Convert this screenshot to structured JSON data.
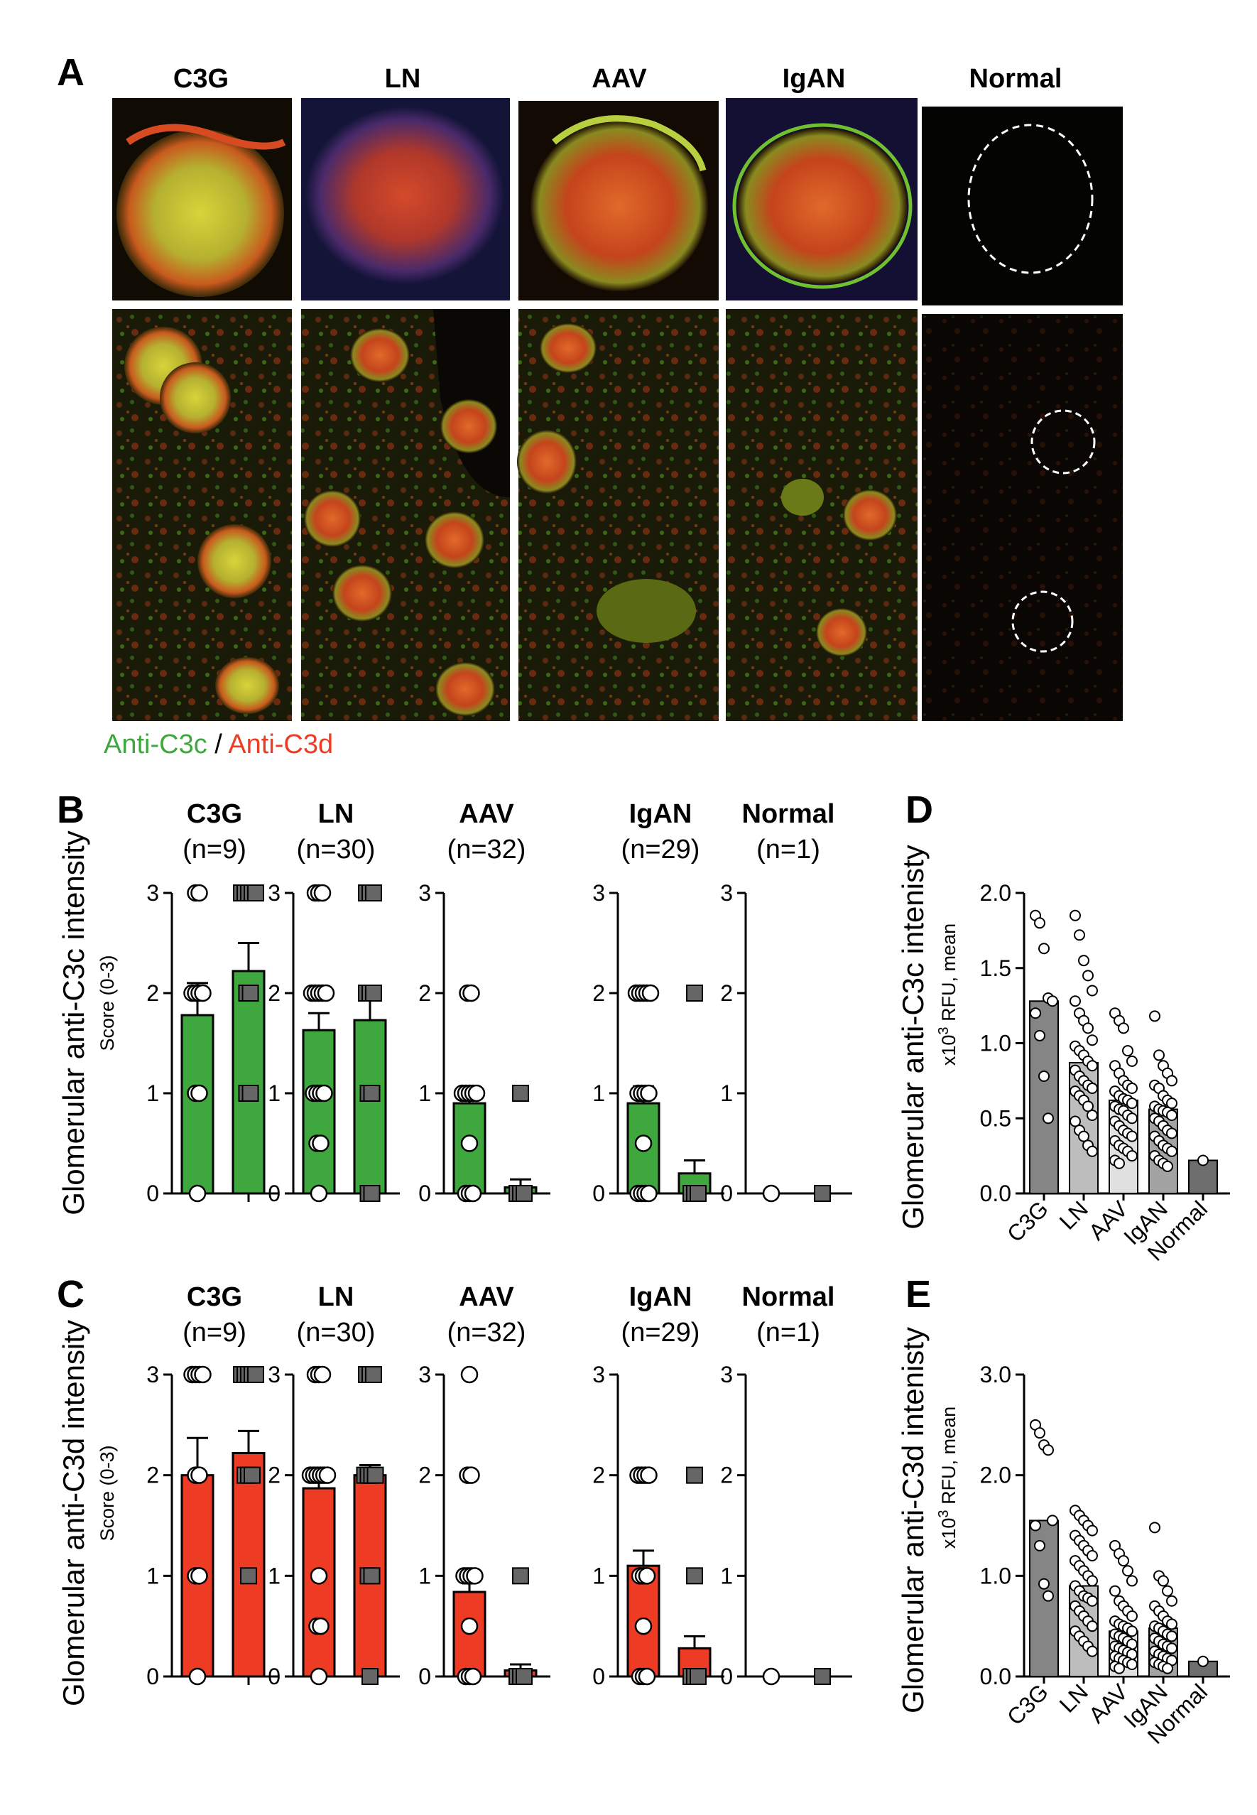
{
  "panel_letters": {
    "a": "A",
    "b": "B",
    "c": "C",
    "d": "D",
    "e": "E"
  },
  "panel_a": {
    "groups": [
      "C3G",
      "LN",
      "AAV",
      "IgAN",
      "Normal"
    ],
    "legend": {
      "green_text": "Anti-C3c",
      "separator": " / ",
      "red_text": "Anti-C3d"
    }
  },
  "colors": {
    "green_bar": "#3ea83e",
    "red_bar": "#ee3b24",
    "dark_bar": "#6e6e6e",
    "grey_square": "#666666"
  },
  "chart_data": [
    {
      "id": "B",
      "type": "bar",
      "ylabel": "Glomerular anti-C3c intensity",
      "ysublabel": "Score (0-3)",
      "ylim": [
        0,
        3
      ],
      "yticks": [
        0,
        1,
        2,
        3
      ],
      "bar_color": "green",
      "groups": [
        {
          "name": "C3G",
          "n_label": "(n=9)",
          "series": [
            {
              "marker": "circle",
              "mean": 1.78,
              "sem": 0.32,
              "points": [
                0,
                1,
                1,
                2,
                2,
                2,
                2,
                3,
                3
              ]
            },
            {
              "marker": "square",
              "mean": 2.22,
              "sem": 0.28,
              "points": [
                1,
                1,
                2,
                2,
                3,
                3,
                3,
                3,
                3
              ]
            }
          ]
        },
        {
          "name": "LN",
          "n_label": "(n=30)",
          "series": [
            {
              "marker": "circle",
              "mean": 1.63,
              "sem": 0.17,
              "points": [
                0,
                0.5,
                0.5,
                1,
                1,
                1,
                1,
                2,
                2,
                2,
                2,
                2,
                3,
                3,
                3
              ]
            },
            {
              "marker": "square",
              "mean": 1.73,
              "sem": 0.2,
              "points": [
                0,
                0,
                1,
                1,
                2,
                2,
                2,
                3,
                3,
                3
              ]
            }
          ]
        },
        {
          "name": "AAV",
          "n_label": "(n=32)",
          "series": [
            {
              "marker": "circle",
              "mean": 0.9,
              "sem": 0.08,
              "points": [
                0,
                0,
                0,
                0.5,
                1,
                1,
                1,
                1,
                1,
                2,
                2
              ]
            },
            {
              "marker": "square",
              "mean": 0.06,
              "sem": 0.08,
              "points": [
                0,
                0,
                0,
                1
              ]
            }
          ]
        },
        {
          "name": "IgAN",
          "n_label": "(n=29)",
          "series": [
            {
              "marker": "circle",
              "mean": 0.9,
              "sem": 0.17,
              "points": [
                0,
                0,
                0,
                0,
                0.5,
                1,
                1,
                1,
                1,
                2,
                2,
                2,
                2,
                2
              ]
            },
            {
              "marker": "square",
              "mean": 0.2,
              "sem": 0.13,
              "points": [
                0,
                0,
                0,
                2
              ]
            }
          ]
        },
        {
          "name": "Normal",
          "n_label": "(n=1)",
          "series": [
            {
              "marker": "circle",
              "mean": 0,
              "sem": 0,
              "points": [
                0
              ]
            },
            {
              "marker": "square",
              "mean": 0,
              "sem": 0,
              "points": [
                0
              ]
            }
          ]
        }
      ]
    },
    {
      "id": "C",
      "type": "bar",
      "ylabel": "Glomerular anti-C3d intensity",
      "ysublabel": "Score (0-3)",
      "ylim": [
        0,
        3
      ],
      "yticks": [
        0,
        1,
        2,
        3
      ],
      "bar_color": "red",
      "groups": [
        {
          "name": "C3G",
          "n_label": "(n=9)",
          "series": [
            {
              "marker": "circle",
              "mean": 2.0,
              "sem": 0.37,
              "points": [
                0,
                1,
                1,
                2,
                2,
                3,
                3,
                3,
                3
              ]
            },
            {
              "marker": "square",
              "mean": 2.22,
              "sem": 0.22,
              "points": [
                1,
                2,
                2,
                2,
                3,
                3,
                3,
                3,
                3
              ]
            }
          ]
        },
        {
          "name": "LN",
          "n_label": "(n=30)",
          "series": [
            {
              "marker": "circle",
              "mean": 1.87,
              "sem": 0.12,
              "points": [
                0,
                0.5,
                0.5,
                1,
                2,
                2,
                2,
                2,
                2,
                2,
                3,
                3,
                3
              ]
            },
            {
              "marker": "square",
              "mean": 2.0,
              "sem": 0.1,
              "points": [
                0,
                1,
                1,
                2,
                2,
                2,
                2,
                3,
                3,
                3
              ]
            }
          ]
        },
        {
          "name": "AAV",
          "n_label": "(n=32)",
          "series": [
            {
              "marker": "circle",
              "mean": 0.84,
              "sem": 0.1,
              "points": [
                0,
                0,
                0,
                0.5,
                1,
                1,
                1,
                1,
                2,
                2,
                3
              ]
            },
            {
              "marker": "square",
              "mean": 0.06,
              "sem": 0.06,
              "points": [
                0,
                0,
                0,
                1
              ]
            }
          ]
        },
        {
          "name": "IgAN",
          "n_label": "(n=29)",
          "series": [
            {
              "marker": "circle",
              "mean": 1.1,
              "sem": 0.15,
              "points": [
                0,
                0,
                0,
                0.5,
                1,
                1,
                1,
                2,
                2,
                2,
                2
              ]
            },
            {
              "marker": "square",
              "mean": 0.28,
              "sem": 0.12,
              "points": [
                0,
                0,
                0,
                1,
                2
              ]
            }
          ]
        },
        {
          "name": "Normal",
          "n_label": "(n=1)",
          "series": [
            {
              "marker": "circle",
              "mean": 0,
              "sem": 0,
              "points": [
                0
              ]
            },
            {
              "marker": "square",
              "mean": 0,
              "sem": 0,
              "points": [
                0
              ]
            }
          ]
        }
      ]
    },
    {
      "id": "D",
      "type": "bar",
      "ylabel": "Glomerular anti-C3c intenisty",
      "ysublabel_pre": "x10",
      "ysublabel_sup": "3",
      "ysublabel_post": " RFU, mean",
      "ylim": [
        0,
        2.0
      ],
      "yticks": [
        0.0,
        0.5,
        1.0,
        1.5,
        2.0
      ],
      "ytick_labels": [
        "0.0",
        "0.5",
        "1.0",
        "1.5",
        "2.0"
      ],
      "categories": [
        "C3G",
        "LN",
        "AAV",
        "IgAN",
        "Normal"
      ],
      "bar_shades": [
        "#858585",
        "#bdbdbd",
        "#e0e0e0",
        "#a3a3a3",
        "#6e6e6e"
      ],
      "values": [
        1.28,
        0.87,
        0.62,
        0.56,
        0.22
      ],
      "points": [
        [
          1.85,
          1.8,
          1.63,
          1.3,
          1.28,
          1.2,
          1.05,
          0.78,
          0.5
        ],
        [
          1.85,
          1.72,
          1.55,
          1.45,
          1.35,
          1.28,
          1.2,
          1.15,
          1.1,
          1.02,
          0.98,
          0.95,
          0.92,
          0.88,
          0.85,
          0.82,
          0.78,
          0.75,
          0.72,
          0.7,
          0.68,
          0.65,
          0.62,
          0.58,
          0.52,
          0.48,
          0.42,
          0.38,
          0.32,
          0.28
        ],
        [
          1.2,
          1.15,
          1.1,
          0.95,
          0.88,
          0.85,
          0.8,
          0.75,
          0.72,
          0.7,
          0.68,
          0.65,
          0.63,
          0.62,
          0.6,
          0.58,
          0.56,
          0.55,
          0.52,
          0.5,
          0.48,
          0.45,
          0.42,
          0.4,
          0.38,
          0.35,
          0.32,
          0.3,
          0.28,
          0.25,
          0.22,
          0.2
        ],
        [
          1.18,
          0.92,
          0.85,
          0.8,
          0.75,
          0.72,
          0.7,
          0.65,
          0.62,
          0.6,
          0.58,
          0.56,
          0.55,
          0.54,
          0.52,
          0.5,
          0.48,
          0.45,
          0.42,
          0.4,
          0.38,
          0.35,
          0.32,
          0.3,
          0.28,
          0.25,
          0.22,
          0.2,
          0.18
        ],
        [
          0.22
        ]
      ]
    },
    {
      "id": "E",
      "type": "bar",
      "ylabel": "Glomerular anti-C3d intenisty",
      "ysublabel_pre": "x10",
      "ysublabel_sup": "3",
      "ysublabel_post": " RFU, mean",
      "ylim": [
        0,
        3.0
      ],
      "yticks": [
        0.0,
        1.0,
        2.0,
        3.0
      ],
      "ytick_labels": [
        "0.0",
        "1.0",
        "2.0",
        "3.0"
      ],
      "categories": [
        "C3G",
        "LN",
        "AAV",
        "IgAN",
        "Normal"
      ],
      "bar_shades": [
        "#858585",
        "#bdbdbd",
        "#e0e0e0",
        "#a3a3a3",
        "#6e6e6e"
      ],
      "values": [
        1.55,
        0.9,
        0.45,
        0.48,
        0.15
      ],
      "points": [
        [
          2.5,
          2.42,
          2.3,
          2.25,
          1.55,
          1.5,
          1.3,
          0.92,
          0.8
        ],
        [
          1.65,
          1.6,
          1.55,
          1.5,
          1.45,
          1.4,
          1.35,
          1.3,
          1.25,
          1.2,
          1.15,
          1.1,
          1.05,
          1.0,
          0.95,
          0.9,
          0.85,
          0.8,
          0.78,
          0.75,
          0.7,
          0.65,
          0.6,
          0.55,
          0.5,
          0.45,
          0.4,
          0.35,
          0.3,
          0.25
        ],
        [
          1.3,
          1.22,
          1.15,
          1.05,
          0.95,
          0.85,
          0.75,
          0.7,
          0.65,
          0.6,
          0.55,
          0.52,
          0.5,
          0.48,
          0.45,
          0.42,
          0.4,
          0.38,
          0.35,
          0.32,
          0.3,
          0.28,
          0.26,
          0.24,
          0.22,
          0.2,
          0.18,
          0.16,
          0.14,
          0.12,
          0.1,
          0.08
        ],
        [
          1.48,
          1.0,
          0.95,
          0.85,
          0.75,
          0.7,
          0.65,
          0.6,
          0.55,
          0.52,
          0.5,
          0.48,
          0.45,
          0.42,
          0.4,
          0.38,
          0.35,
          0.32,
          0.3,
          0.28,
          0.25,
          0.22,
          0.2,
          0.18,
          0.16,
          0.14,
          0.12,
          0.1,
          0.08
        ],
        [
          0.15
        ]
      ]
    }
  ]
}
